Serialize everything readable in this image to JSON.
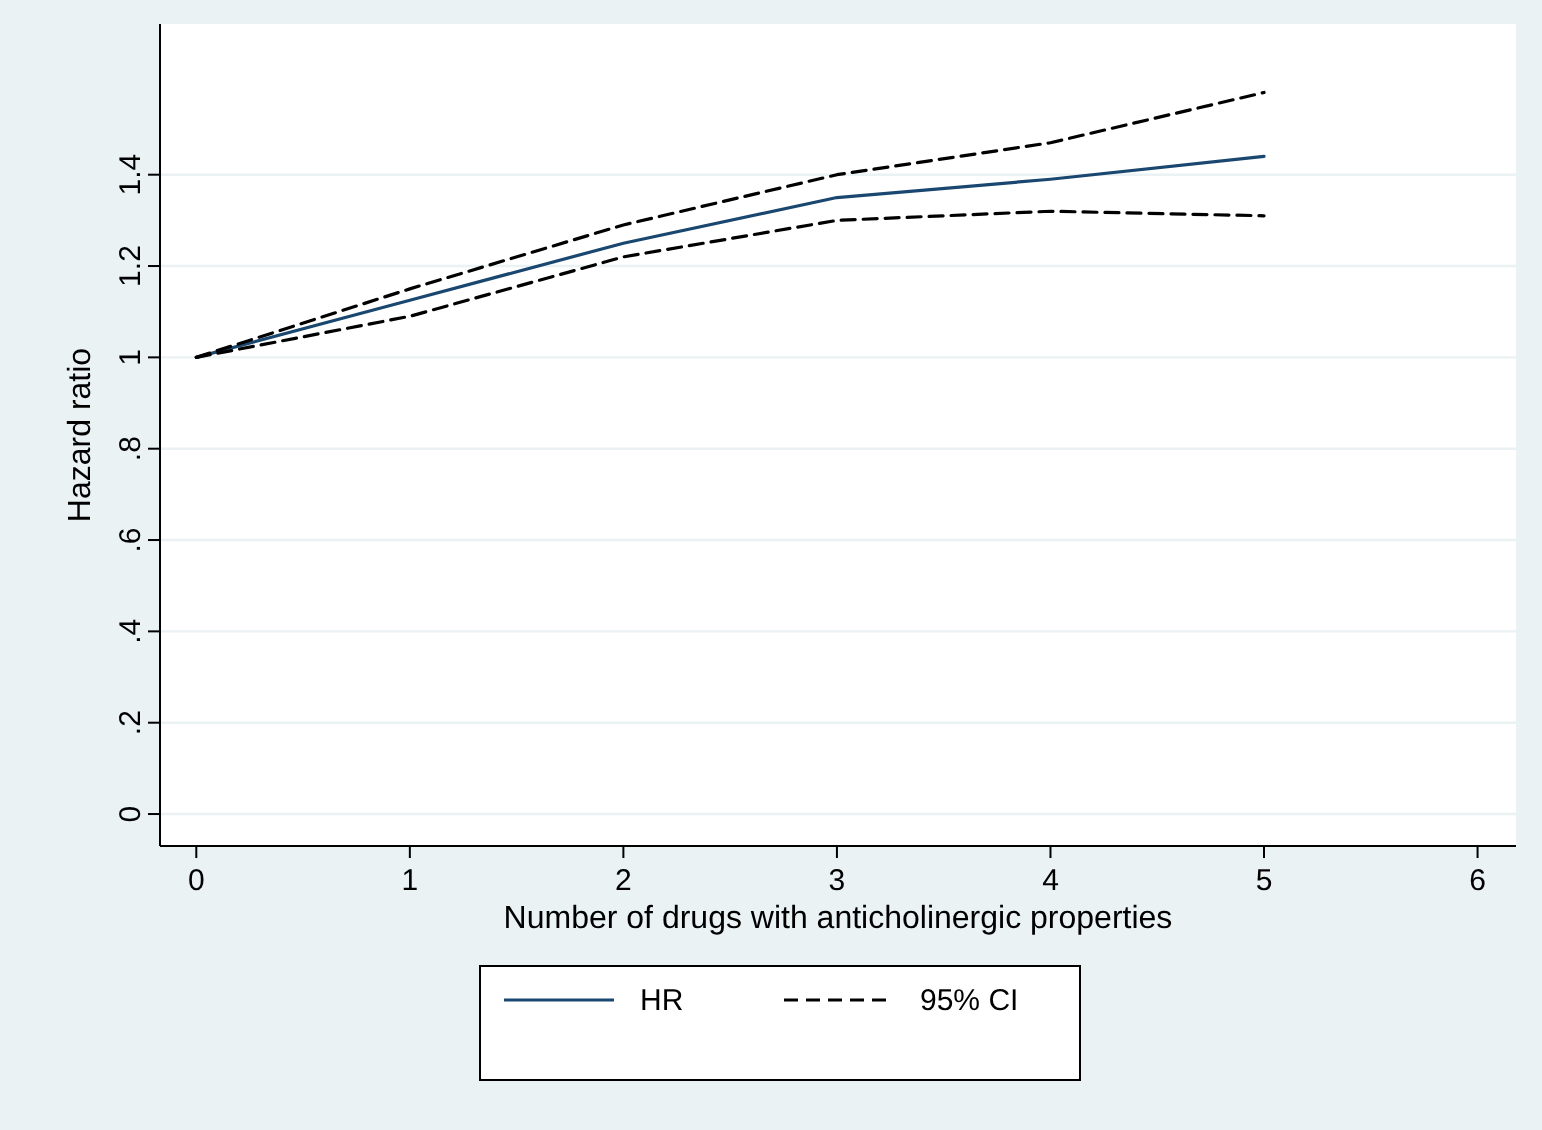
{
  "chart_data": {
    "type": "line",
    "xlabel": "Number of drugs with anticholinergic properties",
    "ylabel": "Hazard ratio",
    "x": [
      0,
      1,
      2,
      3,
      4,
      5
    ],
    "xlim": [
      -0.17,
      6.18
    ],
    "xticks": [
      0,
      1,
      2,
      3,
      4,
      5,
      6
    ],
    "ylim": [
      -0.07,
      1.73
    ],
    "yticks": [
      0,
      {
        "value": 0.2,
        "label": ".2"
      },
      {
        "value": 0.4,
        "label": ".4"
      },
      {
        "value": 0.6,
        "label": ".6"
      },
      {
        "value": 0.8,
        "label": ".8"
      },
      1,
      1.2,
      1.4
    ],
    "grid": "y",
    "legend": "bottom",
    "marker": "none",
    "series": [
      {
        "name": "HR",
        "color": "#1a476f",
        "line_style": "solid",
        "values": [
          1,
          1.125,
          1.25,
          1.35,
          1.39,
          1.44
        ]
      },
      {
        "name": "95% CI",
        "color": "#000000",
        "line_style": "dashed",
        "values": [
          1,
          1.15,
          1.29,
          1.4,
          1.47,
          1.58
        ]
      },
      {
        "color": "#000000",
        "line_style": "dashed",
        "values": [
          1,
          1.09,
          1.22,
          1.3,
          1.32,
          1.31
        ]
      }
    ]
  }
}
